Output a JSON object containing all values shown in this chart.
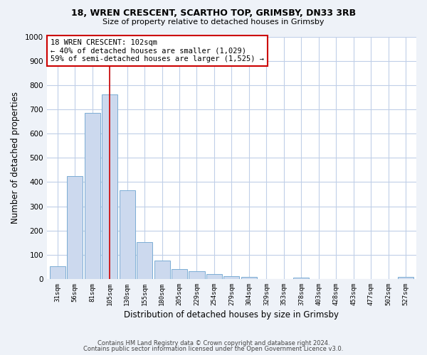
{
  "title": "18, WREN CRESCENT, SCARTHO TOP, GRIMSBY, DN33 3RB",
  "subtitle": "Size of property relative to detached houses in Grimsby",
  "xlabel": "Distribution of detached houses by size in Grimsby",
  "ylabel": "Number of detached properties",
  "bar_labels": [
    "31sqm",
    "56sqm",
    "81sqm",
    "105sqm",
    "130sqm",
    "155sqm",
    "180sqm",
    "205sqm",
    "229sqm",
    "254sqm",
    "279sqm",
    "304sqm",
    "329sqm",
    "353sqm",
    "378sqm",
    "403sqm",
    "428sqm",
    "453sqm",
    "477sqm",
    "502sqm",
    "527sqm"
  ],
  "bar_values": [
    52,
    425,
    685,
    760,
    365,
    153,
    76,
    42,
    33,
    19,
    13,
    10,
    0,
    0,
    5,
    0,
    0,
    0,
    0,
    0,
    8
  ],
  "bar_color": "#ccd9ee",
  "bar_edge_color": "#7badd4",
  "property_line_x": 3.0,
  "property_line_color": "#cc0000",
  "annotation_text": "18 WREN CRESCENT: 102sqm\n← 40% of detached houses are smaller (1,029)\n59% of semi-detached houses are larger (1,525) →",
  "annotation_box_color": "white",
  "annotation_box_edge_color": "#cc0000",
  "ylim": [
    0,
    1000
  ],
  "yticks": [
    0,
    100,
    200,
    300,
    400,
    500,
    600,
    700,
    800,
    900,
    1000
  ],
  "footer_line1": "Contains HM Land Registry data © Crown copyright and database right 2024.",
  "footer_line2": "Contains public sector information licensed under the Open Government Licence v3.0.",
  "bg_color": "#eef2f8",
  "plot_bg_color": "white",
  "grid_color": "#c0cfe8"
}
